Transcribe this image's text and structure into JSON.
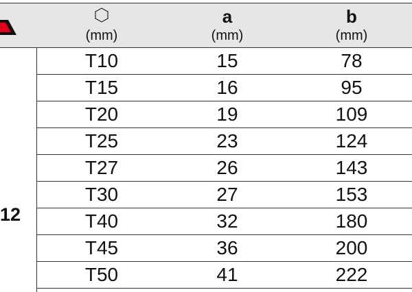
{
  "header": {
    "hex_icon": "hexagon-icon",
    "columns": [
      {
        "label": "",
        "unit": "(mm)"
      },
      {
        "label": "a",
        "unit": "(mm)"
      },
      {
        "label": "b",
        "unit": "(mm)"
      }
    ]
  },
  "group_label": "12",
  "rows": [
    {
      "size": "T10",
      "a": "15",
      "b": "78"
    },
    {
      "size": "T15",
      "a": "16",
      "b": "95"
    },
    {
      "size": "T20",
      "a": "19",
      "b": "109"
    },
    {
      "size": "T25",
      "a": "23",
      "b": "124"
    },
    {
      "size": "T27",
      "a": "26",
      "b": "143"
    },
    {
      "size": "T30",
      "a": "27",
      "b": "153"
    },
    {
      "size": "T40",
      "a": "32",
      "b": "180"
    },
    {
      "size": "T45",
      "a": "36",
      "b": "200"
    },
    {
      "size": "T50",
      "a": "41",
      "b": "222"
    }
  ],
  "colors": {
    "header_bg": "#e6e6e6",
    "logo_red": "#e0001a"
  }
}
